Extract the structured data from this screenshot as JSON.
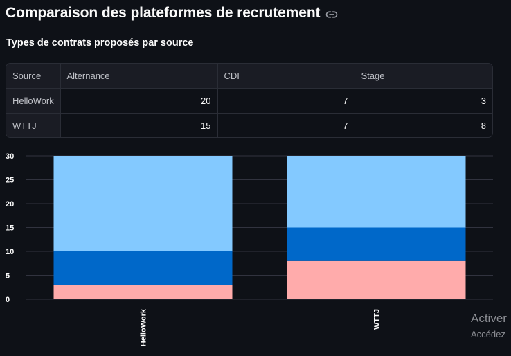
{
  "page": {
    "title": "Comparaison des plateformes de recrutement",
    "subtitle": "Types de contrats proposés par source"
  },
  "table": {
    "columns": [
      "Source",
      "Alternance",
      "CDI",
      "Stage"
    ],
    "rows": [
      {
        "source": "HelloWork",
        "alternance": "20",
        "cdi": "7",
        "stage": "3"
      },
      {
        "source": "WTTJ",
        "alternance": "15",
        "cdi": "7",
        "stage": "8"
      }
    ]
  },
  "chart_data": {
    "type": "bar",
    "stacked": true,
    "categories": [
      "HelloWork",
      "WTTJ"
    ],
    "series": [
      {
        "name": "Stage",
        "values": [
          3,
          8
        ],
        "color": "#ffabab"
      },
      {
        "name": "CDI",
        "values": [
          7,
          7
        ],
        "color": "#0068c9"
      },
      {
        "name": "Alternance",
        "values": [
          20,
          15
        ],
        "color": "#83c9ff"
      }
    ],
    "ylim": [
      0,
      30
    ],
    "yticks": [
      0,
      5,
      10,
      15,
      20,
      25,
      30
    ],
    "grid": true,
    "legend": "none",
    "xlabel": "",
    "ylabel": ""
  },
  "watermark": {
    "line1": "Activer",
    "line2": "Accédez"
  }
}
